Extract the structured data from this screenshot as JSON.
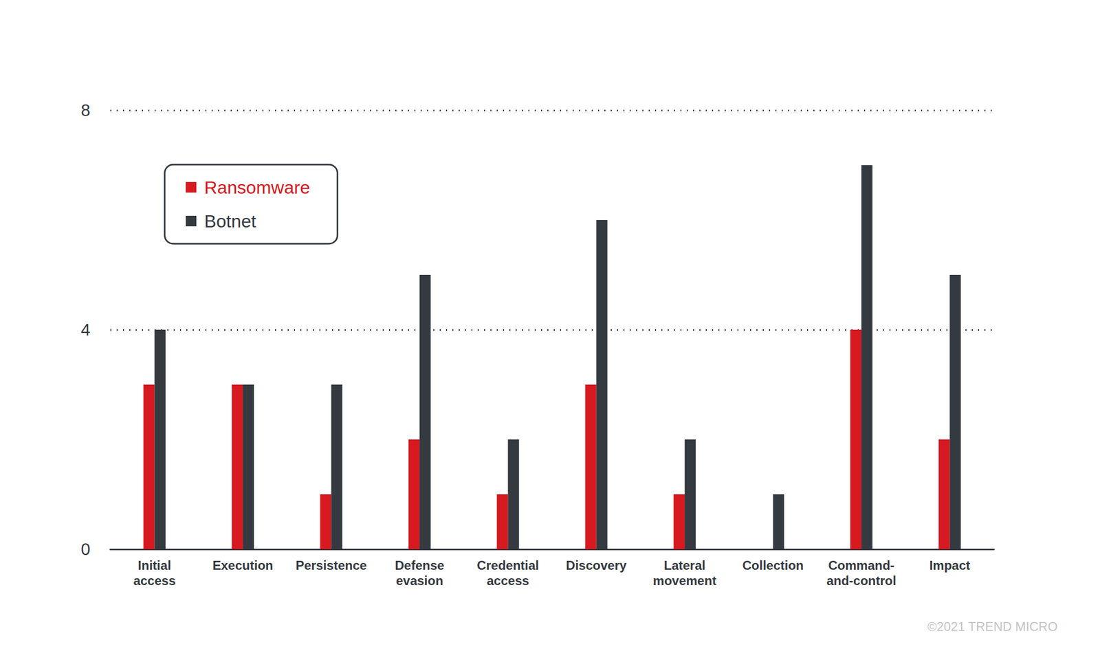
{
  "chart_data": {
    "type": "bar",
    "categories": [
      "Initial access",
      "Execution",
      "Persistence",
      "Defense evasion",
      "Credential access",
      "Discovery",
      "Lateral movement",
      "Collection",
      "Command-and-control",
      "Impact"
    ],
    "series": [
      {
        "name": "Ransomware",
        "color": "#d71920",
        "values": [
          3,
          3,
          1,
          2,
          1,
          3,
          1,
          0,
          4,
          2
        ]
      },
      {
        "name": "Botnet",
        "color": "#343a40",
        "values": [
          4,
          3,
          3,
          5,
          2,
          6,
          2,
          1,
          7,
          5
        ]
      }
    ],
    "ylim": [
      0,
      8
    ],
    "yticks": [
      0,
      4,
      8
    ],
    "grid": true,
    "legend": "upper left",
    "annotations": [
      "©2021 TREND MICRO"
    ]
  }
}
